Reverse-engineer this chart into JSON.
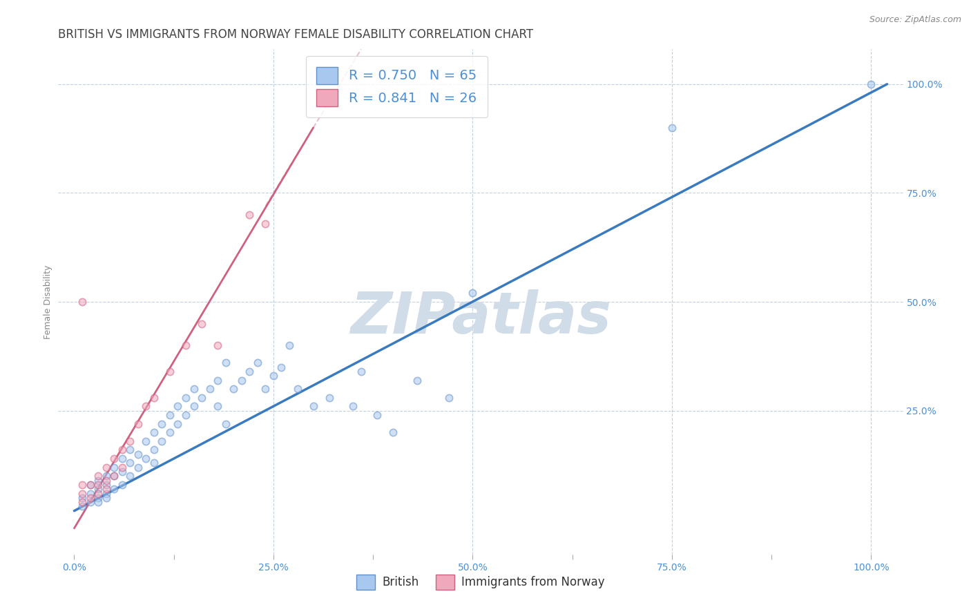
{
  "title": "BRITISH VS IMMIGRANTS FROM NORWAY FEMALE DISABILITY CORRELATION CHART",
  "source": "Source: ZipAtlas.com",
  "ylabel": "Female Disability",
  "xlim": [
    -0.02,
    1.04
  ],
  "ylim": [
    -0.08,
    1.08
  ],
  "xtick_vals": [
    0.0,
    0.125,
    0.25,
    0.375,
    0.5,
    0.625,
    0.75,
    0.875,
    1.0
  ],
  "xtick_labels": [
    "0.0%",
    "",
    "25.0%",
    "",
    "50.0%",
    "",
    "75.0%",
    "",
    "100.0%"
  ],
  "ytick_vals": [
    0.25,
    0.5,
    0.75,
    1.0
  ],
  "ytick_labels": [
    "25.0%",
    "50.0%",
    "75.0%",
    "100.0%"
  ],
  "british_R": 0.75,
  "british_N": 65,
  "norway_R": 0.841,
  "norway_N": 26,
  "british_color": "#a8c8f0",
  "norway_color": "#f0a8bc",
  "british_edge_color": "#6090c8",
  "norway_edge_color": "#d06080",
  "british_line_color": "#3a7abf",
  "norway_line_color": "#d06080",
  "grid_color": "#c0d0e0",
  "axis_label_color": "#4a90d9",
  "tick_label_color": "#4a90d9",
  "watermark": "ZIPatlas",
  "watermark_color": "#d0dce8",
  "legend_bg": "#ffffff",
  "bottom_legend_labels": [
    "British",
    "Immigrants from Norway"
  ],
  "british_scatter_x": [
    0.01,
    0.01,
    0.02,
    0.02,
    0.02,
    0.03,
    0.03,
    0.03,
    0.03,
    0.04,
    0.04,
    0.04,
    0.04,
    0.05,
    0.05,
    0.05,
    0.06,
    0.06,
    0.06,
    0.07,
    0.07,
    0.07,
    0.08,
    0.08,
    0.09,
    0.09,
    0.1,
    0.1,
    0.1,
    0.11,
    0.11,
    0.12,
    0.12,
    0.13,
    0.13,
    0.14,
    0.14,
    0.15,
    0.15,
    0.16,
    0.17,
    0.18,
    0.18,
    0.19,
    0.2,
    0.21,
    0.22,
    0.23,
    0.24,
    0.25,
    0.26,
    0.28,
    0.3,
    0.32,
    0.35,
    0.38,
    0.4,
    0.43,
    0.47,
    0.5,
    0.19,
    0.27,
    0.36,
    0.75,
    1.0
  ],
  "british_scatter_y": [
    0.03,
    0.05,
    0.04,
    0.06,
    0.08,
    0.05,
    0.07,
    0.09,
    0.04,
    0.06,
    0.08,
    0.1,
    0.05,
    0.07,
    0.1,
    0.12,
    0.08,
    0.11,
    0.14,
    0.1,
    0.13,
    0.16,
    0.12,
    0.15,
    0.14,
    0.18,
    0.16,
    0.2,
    0.13,
    0.18,
    0.22,
    0.2,
    0.24,
    0.22,
    0.26,
    0.24,
    0.28,
    0.26,
    0.3,
    0.28,
    0.3,
    0.32,
    0.26,
    0.22,
    0.3,
    0.32,
    0.34,
    0.36,
    0.3,
    0.33,
    0.35,
    0.3,
    0.26,
    0.28,
    0.26,
    0.24,
    0.2,
    0.32,
    0.28,
    0.52,
    0.36,
    0.4,
    0.34,
    0.9,
    1.0
  ],
  "norway_scatter_x": [
    0.01,
    0.01,
    0.01,
    0.02,
    0.02,
    0.03,
    0.03,
    0.03,
    0.04,
    0.04,
    0.04,
    0.05,
    0.05,
    0.06,
    0.06,
    0.07,
    0.08,
    0.09,
    0.1,
    0.12,
    0.14,
    0.16,
    0.18,
    0.22,
    0.24,
    0.01
  ],
  "norway_scatter_y": [
    0.04,
    0.06,
    0.08,
    0.05,
    0.08,
    0.06,
    0.08,
    0.1,
    0.07,
    0.09,
    0.12,
    0.1,
    0.14,
    0.12,
    0.16,
    0.18,
    0.22,
    0.26,
    0.28,
    0.34,
    0.4,
    0.45,
    0.4,
    0.7,
    0.68,
    0.5
  ],
  "british_trend": [
    0.0,
    0.02,
    1.02,
    1.0
  ],
  "norway_trend_solid": [
    0.0,
    -0.02,
    0.3,
    0.9
  ],
  "norway_trend_dashed": [
    0.24,
    0.72,
    0.36,
    1.08
  ],
  "title_fontsize": 12,
  "tick_fontsize": 10,
  "legend_fontsize": 14,
  "marker_size": 55,
  "marker_alpha": 0.55,
  "marker_linewidth": 1.2
}
